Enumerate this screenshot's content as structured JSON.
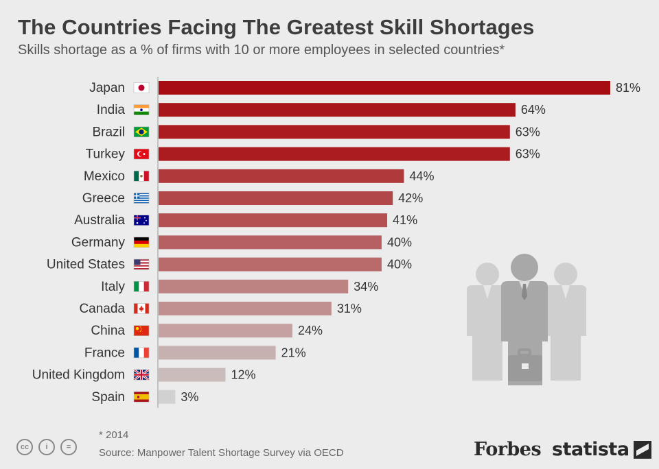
{
  "header": {
    "title": "The Countries Facing The Greatest Skill Shortages",
    "subtitle": "Skills shortage as a % of firms with 10 or more employees in selected countries*"
  },
  "footer": {
    "note": "* 2014",
    "source": "Source: Manpower Talent Shortage Survey via OECD",
    "brand_forbes": "Forbes",
    "brand_statista": "statista"
  },
  "colors": {
    "bar_dark": "#a50f15",
    "bar_light": "#d9d9d9",
    "background": "#ececec"
  },
  "chart_data": {
    "type": "bar",
    "orientation": "horizontal",
    "categories": [
      "Japan",
      "India",
      "Brazil",
      "Turkey",
      "Mexico",
      "Greece",
      "Australia",
      "Germany",
      "United States",
      "Italy",
      "Canada",
      "China",
      "France",
      "United Kingdom",
      "Spain"
    ],
    "values": [
      81,
      64,
      63,
      63,
      44,
      42,
      41,
      40,
      40,
      34,
      31,
      24,
      21,
      12,
      3
    ],
    "value_suffix": "%",
    "bar_colors": [
      "#a50d12",
      "#a8161a",
      "#aa1c20",
      "#aa1c20",
      "#b0393b",
      "#b2474a",
      "#b44f52",
      "#b76062",
      "#b96a6b",
      "#bd8282",
      "#c08f8f",
      "#c5a1a1",
      "#c7b0b0",
      "#cbbcbc",
      "#d1d1d1"
    ],
    "flags": [
      "japan-flag-icon",
      "india-flag-icon",
      "brazil-flag-icon",
      "turkey-flag-icon",
      "mexico-flag-icon",
      "greece-flag-icon",
      "australia-flag-icon",
      "germany-flag-icon",
      "usa-flag-icon",
      "italy-flag-icon",
      "canada-flag-icon",
      "china-flag-icon",
      "france-flag-icon",
      "uk-flag-icon",
      "spain-flag-icon"
    ],
    "xlim": [
      0,
      81
    ],
    "grid": false,
    "legend": "none"
  }
}
